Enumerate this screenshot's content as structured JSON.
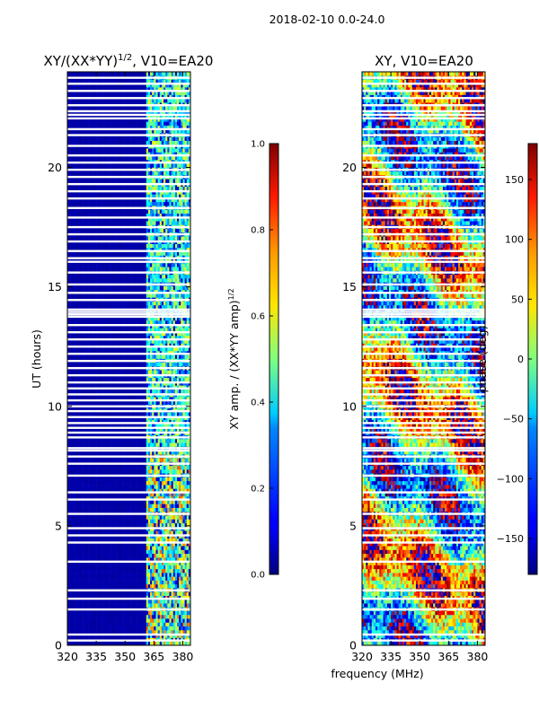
{
  "figure": {
    "suptitle": "2018-02-10 0.0-24.0",
    "shared_xlabel": "frequency (MHz)"
  },
  "chart_data": [
    {
      "type": "heatmap",
      "title_main": "XY/(XX*YY)",
      "title_sup": "1/2",
      "title_rest": ", V10=EA20",
      "xlabel": "frequency (MHz)",
      "ylabel": "UT (hours)",
      "xlim": [
        320,
        384
      ],
      "ylim": [
        0,
        24
      ],
      "xticks": [
        320,
        335,
        350,
        365,
        380
      ],
      "yticks": [
        0,
        5,
        10,
        15,
        20
      ],
      "colorbar": {
        "label_main": "XY amp. / (XX*YY amp)",
        "label_sup": "1/2",
        "range": [
          0.0,
          1.0
        ],
        "ticks": [
          "0.0",
          "0.2",
          "0.4",
          "0.6",
          "0.8",
          "1.0"
        ],
        "colormap": "jet"
      },
      "features": {
        "low_band_mhz": [
          320,
          361
        ],
        "low_band_value": 0.03,
        "high_band_mhz": [
          361,
          384
        ],
        "high_band_value_range": [
          0.2,
          0.8
        ]
      }
    },
    {
      "type": "heatmap",
      "title": "XY, V10=EA20",
      "xlabel": "frequency (MHz)",
      "ylabel": "",
      "xlim": [
        320,
        384
      ],
      "ylim": [
        0,
        24
      ],
      "xticks": [
        320,
        335,
        350,
        365,
        380
      ],
      "yticks": [
        0,
        5,
        10,
        15,
        20
      ],
      "colorbar": {
        "label": "phase (deg)",
        "range": [
          -180,
          180
        ],
        "ticks": [
          "150",
          "100",
          "50",
          "0",
          "−50",
          "−100",
          "−150"
        ],
        "tick_values": [
          150,
          100,
          50,
          0,
          -50,
          -100,
          -150
        ],
        "colormap": "jet"
      }
    }
  ],
  "flagged_ut_hours": [
    0.2,
    0.45,
    1.5,
    1.95,
    2.3,
    3.5,
    4.3,
    4.6,
    4.9,
    5.5,
    6.1,
    6.4,
    7.1,
    7.6,
    7.9,
    8.15,
    8.25,
    8.7,
    8.9,
    9.1,
    9.3,
    9.55,
    9.8,
    10.0,
    10.25,
    10.5,
    10.75,
    11.0,
    11.3,
    11.6,
    11.9,
    12.2,
    12.5,
    12.8,
    13.1,
    13.4,
    13.75,
    13.85,
    13.95,
    14.05,
    14.45,
    14.75,
    15.1,
    15.6,
    16.05,
    16.2,
    16.5,
    16.9,
    17.2,
    17.5,
    17.9,
    18.3,
    18.7,
    19.0,
    19.3,
    19.6,
    19.9,
    20.2,
    20.5,
    20.9,
    21.35,
    21.6,
    22.05,
    22.2,
    22.35,
    22.6,
    22.9,
    23.2,
    23.5,
    23.75
  ]
}
